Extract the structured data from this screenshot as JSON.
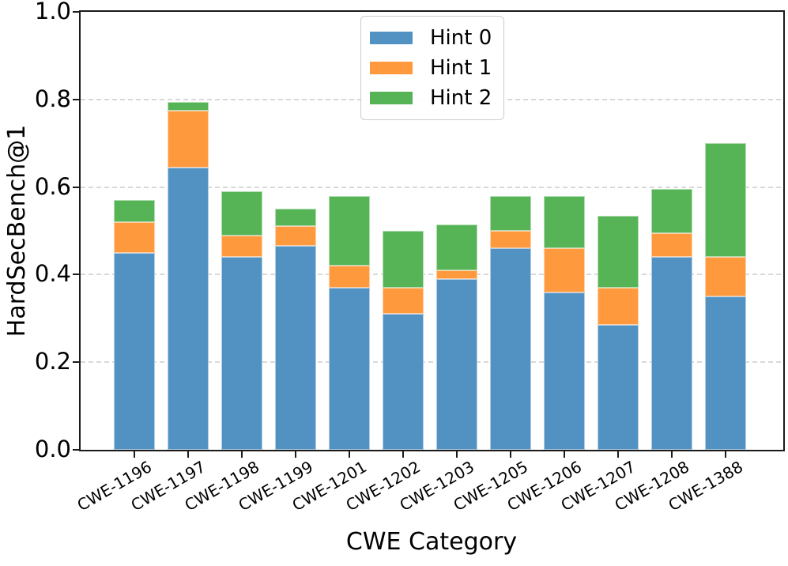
{
  "figure": {
    "background": "#ffffff",
    "spine_color": "#1a1a1a",
    "grid_color": "#d9d9d9"
  },
  "chart_data": {
    "type": "bar",
    "stacked": true,
    "title": "",
    "xlabel": "CWE Category",
    "ylabel": "HardSecBench@1",
    "categories": [
      "CWE-1196",
      "CWE-1197",
      "CWE-1198",
      "CWE-1199",
      "CWE-1201",
      "CWE-1202",
      "CWE-1203",
      "CWE-1205",
      "CWE-1206",
      "CWE-1207",
      "CWE-1208",
      "CWE-1388"
    ],
    "series": [
      {
        "name": "Hint 0",
        "color": "#5292c3",
        "values": [
          0.45,
          0.645,
          0.44,
          0.465,
          0.37,
          0.31,
          0.39,
          0.46,
          0.36,
          0.285,
          0.44,
          0.35
        ]
      },
      {
        "name": "Hint 1",
        "color": "#ff993e",
        "values": [
          0.07,
          0.13,
          0.05,
          0.045,
          0.05,
          0.06,
          0.02,
          0.04,
          0.1,
          0.085,
          0.055,
          0.09
        ]
      },
      {
        "name": "Hint 2",
        "color": "#56b356",
        "values": [
          0.05,
          0.02,
          0.1,
          0.04,
          0.16,
          0.13,
          0.105,
          0.08,
          0.12,
          0.165,
          0.1,
          0.26
        ]
      }
    ],
    "stack_totals": [
      0.57,
      0.795,
      0.59,
      0.55,
      0.58,
      0.5,
      0.515,
      0.58,
      0.58,
      0.535,
      0.595,
      0.7
    ],
    "ylim": [
      0.0,
      1.0
    ],
    "yticks": [
      "0.0",
      "0.2",
      "0.4",
      "0.6",
      "0.8",
      "1.0"
    ],
    "grid": "horizontal-dashed",
    "legend_position": "upper-center",
    "x_tick_rotation_deg": 30
  }
}
